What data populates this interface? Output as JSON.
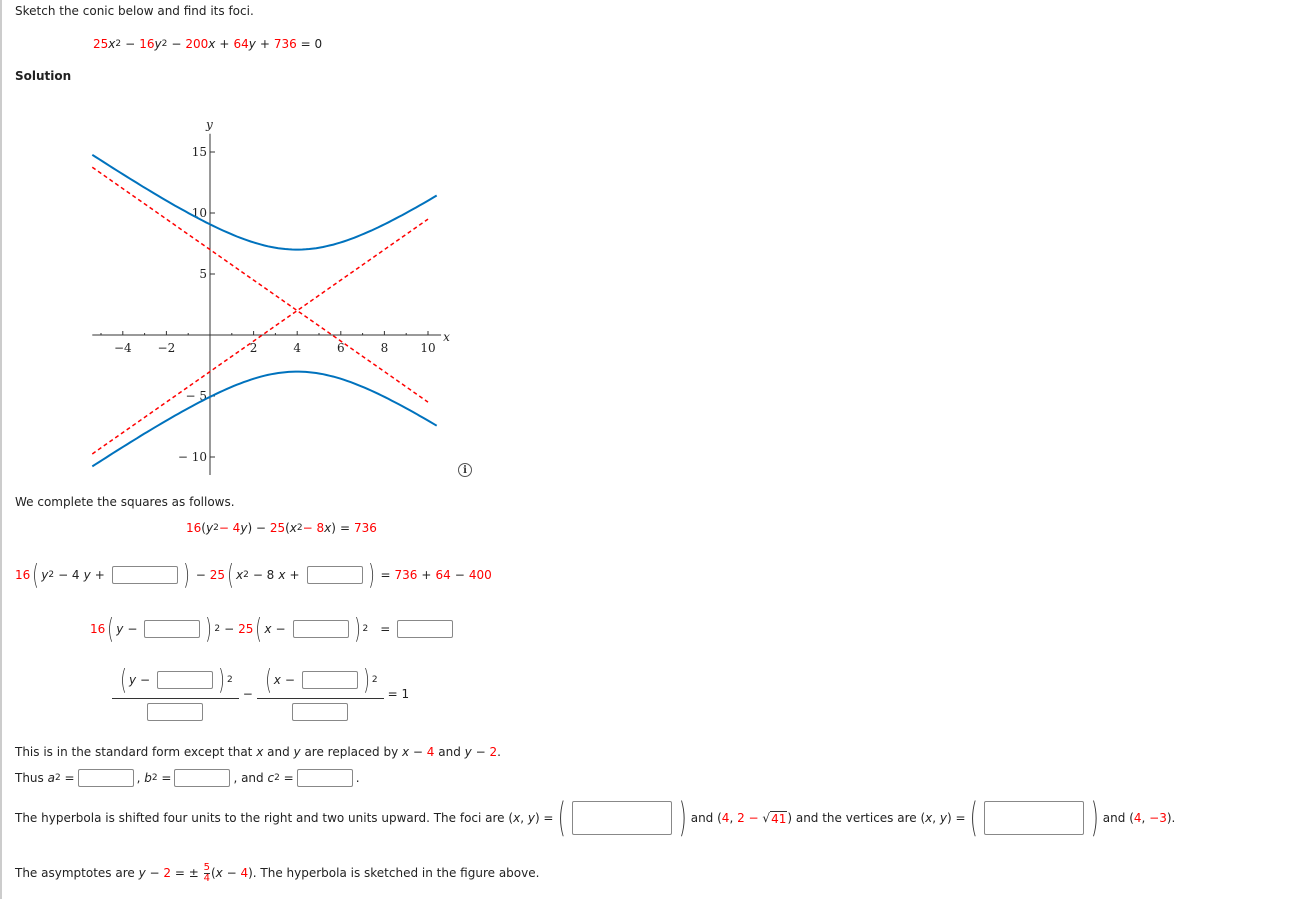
{
  "question": {
    "prompt": "Sketch the conic below and find its foci.",
    "equation": {
      "t1": "25",
      "v1": "x",
      "p1": "2",
      "op1": "−",
      "t2": "16",
      "v2": "y",
      "p2": "2",
      "op2": "−",
      "t3": "200",
      "v3": "x",
      "op3": "+",
      "t4": "64",
      "v4": "y",
      "op4": "+",
      "t5": "736",
      "eq": "= 0"
    }
  },
  "solution_heading": "Solution",
  "chart_data": {
    "type": "line",
    "xlabel": "x",
    "ylabel": "y",
    "xlim": [
      -5.4,
      10.6
    ],
    "ylim": [
      -11.5,
      16.5
    ],
    "xticks": [
      -4,
      -2,
      2,
      4,
      6,
      8,
      10
    ],
    "yticks": [
      -10,
      -5,
      5,
      10,
      15
    ],
    "hyperbola": {
      "h": 4,
      "k": 2,
      "a": 5,
      "b": 4,
      "orientation": "vertical",
      "x_range": [
        -5.4,
        10.4
      ],
      "color": "#0072bd"
    },
    "asymptotes": {
      "slopes": [
        1.25,
        -1.25
      ],
      "center": [
        4,
        2
      ],
      "x_range": [
        -5.4,
        10
      ],
      "color": "#ff0000",
      "style": "dashed"
    }
  },
  "info_icon": "info-icon",
  "steps": {
    "intro": "We complete the squares as follows.",
    "line1": {
      "a": "16",
      "b": "(",
      "c": "y",
      "d": "2",
      "e": " − 4",
      "f": "y",
      "g": ") − ",
      "h": "25",
      "i": "(",
      "j": "x",
      "k": "2",
      "l": " − 8",
      "m": "x",
      "n": ")",
      "o": "=",
      "p": "736"
    },
    "line2": {
      "a": "16",
      "b": "y",
      "c": "2",
      "d": "− 4",
      "e": "y",
      "f": "+",
      "g": "−",
      "h": "25",
      "i": "x",
      "j": "2",
      "k": "− 8",
      "l": "x",
      "m": "+",
      "n": "=",
      "o": "736",
      "p": "+",
      "q": "64",
      "r": "−",
      "s": "400"
    },
    "line3": {
      "a": "16",
      "b": "y",
      "c": "−",
      "d": "2",
      "e": "−",
      "f": "25",
      "g": "x",
      "h": "−",
      "i": "2",
      "j": "="
    },
    "line4": {
      "a": "y",
      "b": "−",
      "c": "2",
      "d": "−",
      "e": "x",
      "f": "−",
      "g": "2",
      "h": "= 1"
    }
  },
  "standard": {
    "text1": "This is in the standard form except that ",
    "x": "x",
    "and": " and ",
    "y": "y",
    "text2": " are replaced by ",
    "x2": "x",
    "m1": " − ",
    "four": "4",
    "and2": " and ",
    "y2": "y",
    "m2": " − ",
    "two": "2",
    "end": "."
  },
  "thus": {
    "a": "Thus ",
    "a2": "a",
    "p": "2",
    "eq": " =",
    "b": ", ",
    "b2": "b",
    "eq2": " =",
    "c": ", and ",
    "c2": "c",
    "eq3": " =",
    "end": "."
  },
  "foci": {
    "text": "The hyperbola is shifted four units to the right and two units upward. The foci are (",
    "x": "x",
    "comma": ", ",
    "y": "y",
    "close": ") =",
    "and": "and (",
    "f1": "4",
    "comma2": ", ",
    "f2": "2 −",
    "sqrt": "41",
    "close2": ") and the vertices are (",
    "x2": "x",
    "comma3": ", ",
    "y2": "y",
    "close3": ") =",
    "and2": "and (",
    "v1": "4",
    "comma4": ", ",
    "v2": "−3",
    "close4": ")."
  },
  "asymptotes_text": {
    "a": "The asymptotes are ",
    "y": "y",
    "b": " − ",
    "two": "2",
    "c": " = ± ",
    "num": "5",
    "den": "4",
    "d": "(",
    "x": "x",
    "e": " − ",
    "four": "4",
    "f": "). The hyperbola is sketched in the figure above."
  }
}
